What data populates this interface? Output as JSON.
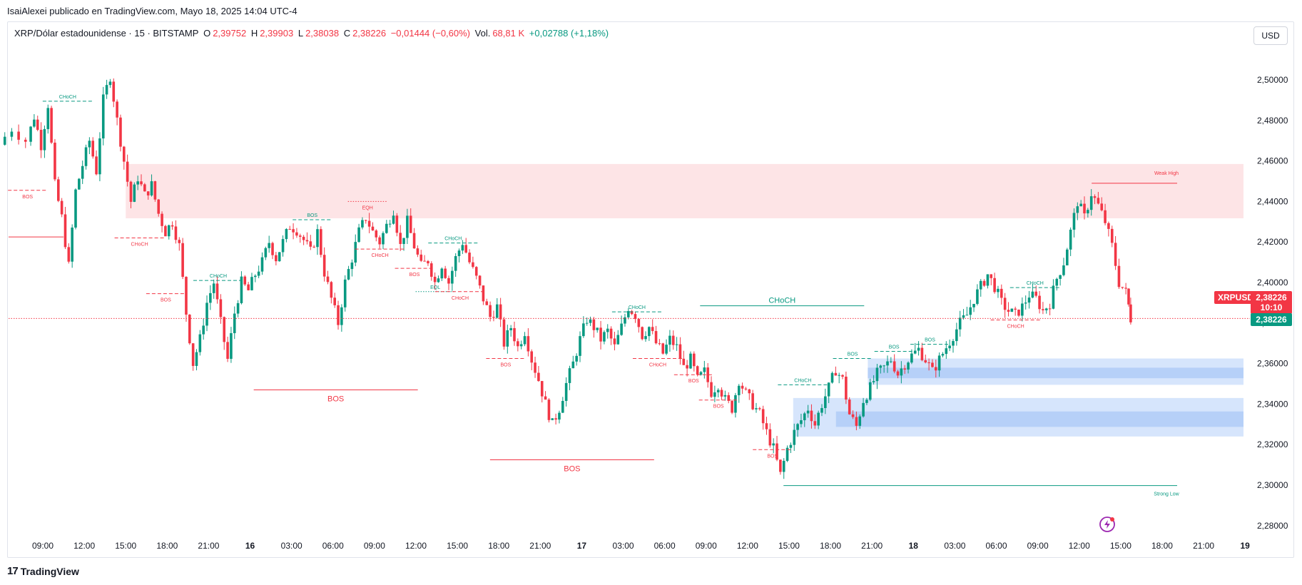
{
  "publisher": "IsaiAlexei publicado en TradingView.com, Mayo 18, 2025 14:04 UTC-4",
  "legend": {
    "symbol": "XRP/Dólar estadounidense · 15 · BITSTAMP",
    "o_label": "O",
    "o_value": "2,39752",
    "h_label": "H",
    "h_value": "2,39903",
    "l_label": "L",
    "l_value": "2,38038",
    "c_label": "C",
    "c_value": "2,38226",
    "change": "−0,01444 (−0,60%)",
    "vol_label": "Vol.",
    "vol_value": "68,81 K",
    "vol_change": "+0,02788 (+1,18%)"
  },
  "currency_button": "USD",
  "price_tags": {
    "symbol": "XRPUSD",
    "last": "2,38226",
    "countdown": "10:10",
    "bid": "2,38226"
  },
  "footer_logo": "TradingView",
  "colors": {
    "up": "#089981",
    "down": "#f23645",
    "supply_zone": "#fde4e6",
    "demand_zone": "#cfe0fb",
    "demand_zone_inner": "#a8c7f7"
  },
  "chart_data": {
    "type": "candlestick",
    "y_ticks": [
      "2,28000",
      "2,30000",
      "2,32000",
      "2,34000",
      "2,36000",
      "2,38000",
      "2,40000",
      "2,42000",
      "2,44000",
      "2,46000",
      "2,48000",
      "2,50000"
    ],
    "y_tick_values": [
      2.28,
      2.3,
      2.32,
      2.34,
      2.36,
      2.38,
      2.4,
      2.42,
      2.44,
      2.46,
      2.48,
      2.5
    ],
    "ylim": [
      2.27,
      2.52
    ],
    "x_ticks": [
      "09:00",
      "12:00",
      "15:00",
      "18:00",
      "21:00",
      "16",
      "03:00",
      "06:00",
      "09:00",
      "12:00",
      "15:00",
      "18:00",
      "21:00",
      "17",
      "03:00",
      "06:00",
      "09:00",
      "12:00",
      "15:00",
      "18:00",
      "21:00",
      "18",
      "03:00",
      "06:00",
      "09:00",
      "12:00",
      "15:00",
      "18:00",
      "21:00",
      "19"
    ],
    "x_tick_hours": [
      9,
      12,
      15,
      18,
      21,
      24,
      27,
      30,
      33,
      36,
      39,
      42,
      45,
      48,
      51,
      54,
      57,
      60,
      63,
      66,
      69,
      72,
      75,
      78,
      81,
      84,
      87,
      90,
      93,
      96
    ],
    "xlim_hours": [
      6.0,
      96.0
    ],
    "last_price": 2.38226,
    "zones": [
      {
        "kind": "supply",
        "from_hour": 15.0,
        "to_hour": 96.0,
        "y0": 2.4317,
        "y1": 2.4585
      },
      {
        "kind": "demand",
        "from_hour": 68.7,
        "to_hour": 96.0,
        "y0": 2.3495,
        "y1": 2.3625
      },
      {
        "kind": "demand",
        "from_hour": 63.3,
        "to_hour": 96.0,
        "y0": 2.324,
        "y1": 2.343
      }
    ],
    "structure_labels": [
      {
        "text": "BOS",
        "color": "down",
        "hour": 7.9,
        "y": 2.4455,
        "style": "dashed"
      },
      {
        "text": "CHoCH",
        "color": "up",
        "hour": 10.8,
        "y": 2.4895,
        "style": "dashed"
      },
      {
        "text": "CHoCH",
        "color": "down",
        "hour": 16.0,
        "y": 2.422,
        "style": "dashed"
      },
      {
        "text": "BOS",
        "color": "down",
        "hour": 17.9,
        "y": 2.3945,
        "style": "dashed"
      },
      {
        "text": "CHoCH",
        "color": "up",
        "hour": 21.7,
        "y": 2.401,
        "style": "dashed"
      },
      {
        "text": "BOS",
        "color": "down",
        "hour": 30.2,
        "y": 2.347,
        "style": "solid",
        "big": true
      },
      {
        "text": "BOS",
        "color": "up",
        "hour": 28.5,
        "y": 2.431,
        "style": "dashed"
      },
      {
        "text": "EQH",
        "color": "down",
        "hour": 32.5,
        "y": 2.44,
        "style": "dotted"
      },
      {
        "text": "CHoCH",
        "color": "down",
        "hour": 33.4,
        "y": 2.4165,
        "style": "dashed"
      },
      {
        "text": "BOS",
        "color": "down",
        "hour": 35.9,
        "y": 2.407,
        "style": "dashed"
      },
      {
        "text": "CHoCH",
        "color": "up",
        "hour": 38.7,
        "y": 2.4195,
        "style": "dashed"
      },
      {
        "text": "EQL",
        "color": "up",
        "hour": 37.4,
        "y": 2.3955,
        "style": "dotted"
      },
      {
        "text": "CHoCH",
        "color": "down",
        "hour": 39.2,
        "y": 2.3955,
        "style": "dashed"
      },
      {
        "text": "BOS",
        "color": "down",
        "hour": 42.5,
        "y": 2.3625,
        "style": "dashed"
      },
      {
        "text": "CHoCH",
        "color": "up",
        "hour": 52.0,
        "y": 2.3855,
        "style": "dashed"
      },
      {
        "text": "BOS",
        "color": "down",
        "hour": 47.3,
        "y": 2.3125,
        "style": "solid",
        "big": true
      },
      {
        "text": "CHoCH",
        "color": "down",
        "hour": 53.5,
        "y": 2.3625,
        "style": "dashed"
      },
      {
        "text": "BOS",
        "color": "down",
        "hour": 56.1,
        "y": 2.3545,
        "style": "dashed"
      },
      {
        "text": "BOS",
        "color": "down",
        "hour": 57.9,
        "y": 2.342,
        "style": "dashed"
      },
      {
        "text": "CHoCH",
        "color": "up",
        "hour": 62.5,
        "y": 2.3885,
        "style": "solid",
        "big": true
      },
      {
        "text": "BOS",
        "color": "down",
        "hour": 61.8,
        "y": 2.3175,
        "style": "dashed"
      },
      {
        "text": "CHoCH",
        "color": "up",
        "hour": 64.0,
        "y": 2.3495,
        "style": "dashed"
      },
      {
        "text": "BOS",
        "color": "up",
        "hour": 67.6,
        "y": 2.3625,
        "style": "dashed"
      },
      {
        "text": "BOS",
        "color": "up",
        "hour": 70.6,
        "y": 2.366,
        "style": "dashed"
      },
      {
        "text": "BOS",
        "color": "up",
        "hour": 73.2,
        "y": 2.3695,
        "style": "dashed"
      },
      {
        "text": "CHoCH",
        "color": "up",
        "hour": 80.8,
        "y": 2.3975,
        "style": "dashed"
      },
      {
        "text": "CHoCH",
        "color": "down",
        "hour": 79.4,
        "y": 2.3815,
        "style": "dashed"
      },
      {
        "text": "Weak High",
        "color": "down",
        "hour": 91.0,
        "y": 2.449,
        "style": "solid"
      },
      {
        "text": "Strong Low",
        "color": "up",
        "hour": 91.0,
        "y": 2.2998,
        "style": "solid"
      }
    ],
    "price_path": [
      [
        6.0,
        2.468
      ],
      [
        7.0,
        2.476
      ],
      [
        8.0,
        2.47
      ],
      [
        8.5,
        2.482
      ],
      [
        9.0,
        2.468
      ],
      [
        9.5,
        2.488
      ],
      [
        10.0,
        2.448
      ],
      [
        10.5,
        2.432
      ],
      [
        11.0,
        2.408
      ],
      [
        11.5,
        2.445
      ],
      [
        12.0,
        2.458
      ],
      [
        12.5,
        2.47
      ],
      [
        13.0,
        2.455
      ],
      [
        13.5,
        2.49
      ],
      [
        14.0,
        2.502
      ],
      [
        14.5,
        2.48
      ],
      [
        15.0,
        2.46
      ],
      [
        15.5,
        2.44
      ],
      [
        16.0,
        2.452
      ],
      [
        16.5,
        2.443
      ],
      [
        17.0,
        2.448
      ],
      [
        17.5,
        2.434
      ],
      [
        18.0,
        2.425
      ],
      [
        18.5,
        2.43
      ],
      [
        19.0,
        2.418
      ],
      [
        19.5,
        2.385
      ],
      [
        20.0,
        2.36
      ],
      [
        20.5,
        2.372
      ],
      [
        21.0,
        2.39
      ],
      [
        21.5,
        2.4
      ],
      [
        22.0,
        2.38
      ],
      [
        22.5,
        2.362
      ],
      [
        23.0,
        2.385
      ],
      [
        23.5,
        2.4
      ],
      [
        24.0,
        2.396
      ],
      [
        24.5,
        2.404
      ],
      [
        25.0,
        2.41
      ],
      [
        25.5,
        2.42
      ],
      [
        26.0,
        2.412
      ],
      [
        26.5,
        2.42
      ],
      [
        27.0,
        2.428
      ],
      [
        27.5,
        2.426
      ],
      [
        28.0,
        2.421
      ],
      [
        28.5,
        2.415
      ],
      [
        29.0,
        2.425
      ],
      [
        29.5,
        2.405
      ],
      [
        30.0,
        2.392
      ],
      [
        30.5,
        2.38
      ],
      [
        31.0,
        2.4
      ],
      [
        31.5,
        2.412
      ],
      [
        32.0,
        2.425
      ],
      [
        32.5,
        2.432
      ],
      [
        33.0,
        2.425
      ],
      [
        33.5,
        2.42
      ],
      [
        34.0,
        2.428
      ],
      [
        34.5,
        2.436
      ],
      [
        35.0,
        2.418
      ],
      [
        35.5,
        2.43
      ],
      [
        36.0,
        2.418
      ],
      [
        36.5,
        2.408
      ],
      [
        37.0,
        2.411
      ],
      [
        37.5,
        2.4
      ],
      [
        38.0,
        2.409
      ],
      [
        38.5,
        2.4
      ],
      [
        39.0,
        2.412
      ],
      [
        39.5,
        2.42
      ],
      [
        40.0,
        2.41
      ],
      [
        40.5,
        2.402
      ],
      [
        41.0,
        2.392
      ],
      [
        41.5,
        2.383
      ],
      [
        42.0,
        2.388
      ],
      [
        42.5,
        2.37
      ],
      [
        43.0,
        2.378
      ],
      [
        43.5,
        2.368
      ],
      [
        44.0,
        2.376
      ],
      [
        44.5,
        2.362
      ],
      [
        45.0,
        2.352
      ],
      [
        45.5,
        2.34
      ],
      [
        46.0,
        2.33
      ],
      [
        46.5,
        2.338
      ],
      [
        47.0,
        2.35
      ],
      [
        47.5,
        2.36
      ],
      [
        48.0,
        2.372
      ],
      [
        48.5,
        2.382
      ],
      [
        49.0,
        2.378
      ],
      [
        49.5,
        2.372
      ],
      [
        50.0,
        2.376
      ],
      [
        50.5,
        2.368
      ],
      [
        51.0,
        2.378
      ],
      [
        51.5,
        2.388
      ],
      [
        52.0,
        2.384
      ],
      [
        52.5,
        2.374
      ],
      [
        53.0,
        2.378
      ],
      [
        53.5,
        2.37
      ],
      [
        54.0,
        2.365
      ],
      [
        54.5,
        2.372
      ],
      [
        55.0,
        2.368
      ],
      [
        55.5,
        2.358
      ],
      [
        56.0,
        2.362
      ],
      [
        56.5,
        2.352
      ],
      [
        57.0,
        2.356
      ],
      [
        57.5,
        2.346
      ],
      [
        58.0,
        2.35
      ],
      [
        58.5,
        2.342
      ],
      [
        59.0,
        2.338
      ],
      [
        59.5,
        2.352
      ],
      [
        60.0,
        2.345
      ],
      [
        60.5,
        2.34
      ],
      [
        61.0,
        2.335
      ],
      [
        61.5,
        2.326
      ],
      [
        62.0,
        2.318
      ],
      [
        62.5,
        2.305
      ],
      [
        63.0,
        2.318
      ],
      [
        63.5,
        2.326
      ],
      [
        64.0,
        2.332
      ],
      [
        64.5,
        2.338
      ],
      [
        65.0,
        2.33
      ],
      [
        65.5,
        2.34
      ],
      [
        66.0,
        2.348
      ],
      [
        66.5,
        2.357
      ],
      [
        67.0,
        2.352
      ],
      [
        67.5,
        2.335
      ],
      [
        68.0,
        2.329
      ],
      [
        68.5,
        2.342
      ],
      [
        69.0,
        2.348
      ],
      [
        69.5,
        2.355
      ],
      [
        70.0,
        2.358
      ],
      [
        70.5,
        2.362
      ],
      [
        71.0,
        2.355
      ],
      [
        71.5,
        2.36
      ],
      [
        72.0,
        2.364
      ],
      [
        72.5,
        2.367
      ],
      [
        73.0,
        2.362
      ],
      [
        73.5,
        2.356
      ],
      [
        74.0,
        2.362
      ],
      [
        74.5,
        2.368
      ],
      [
        75.0,
        2.374
      ],
      [
        75.5,
        2.38
      ],
      [
        76.0,
        2.384
      ],
      [
        76.5,
        2.392
      ],
      [
        77.0,
        2.398
      ],
      [
        77.5,
        2.404
      ],
      [
        78.0,
        2.398
      ],
      [
        78.5,
        2.39
      ],
      [
        79.0,
        2.386
      ],
      [
        79.5,
        2.384
      ],
      [
        80.0,
        2.388
      ],
      [
        80.5,
        2.394
      ],
      [
        81.0,
        2.392
      ],
      [
        81.5,
        2.386
      ],
      [
        82.0,
        2.39
      ],
      [
        82.5,
        2.402
      ],
      [
        83.0,
        2.41
      ],
      [
        83.5,
        2.425
      ],
      [
        84.0,
        2.44
      ],
      [
        84.5,
        2.432
      ],
      [
        85.0,
        2.444
      ],
      [
        85.5,
        2.438
      ],
      [
        86.0,
        2.43
      ],
      [
        86.5,
        2.418
      ],
      [
        87.0,
        2.4
      ],
      [
        87.5,
        2.395
      ],
      [
        87.8,
        2.38226
      ]
    ]
  }
}
